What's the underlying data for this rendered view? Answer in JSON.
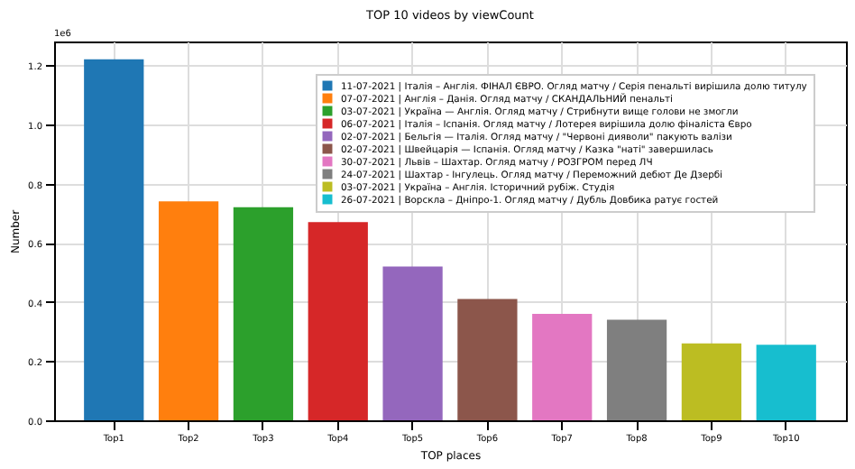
{
  "chart_data": {
    "type": "bar",
    "title": "TOP 10 videos by viewCount",
    "xlabel": "TOP places",
    "ylabel": "Number",
    "categories": [
      "Top1",
      "Top2",
      "Top3",
      "Top4",
      "Top5",
      "Top6",
      "Top7",
      "Top8",
      "Top9",
      "Top10"
    ],
    "series": [
      {
        "name": "11-07-2021 | Італія – Англія. ФІНАЛ ЄВРО. Огляд матчу / Серія пенальті вирішила долю титулу",
        "color": "#1f77b4",
        "values": [
          1.22,
          null,
          null,
          null,
          null,
          null,
          null,
          null,
          null,
          null
        ]
      },
      {
        "name": "07-07-2021 | Англія – Данія. Огляд матчу / СКАНДАЛЬНИЙ пенальті",
        "color": "#ff7f0e",
        "values": [
          null,
          0.74,
          null,
          null,
          null,
          null,
          null,
          null,
          null,
          null
        ]
      },
      {
        "name": "03-07-2021 | Україна — Англія. Огляд матчу / Стрибнути вище голови не змогли",
        "color": "#2ca02c",
        "values": [
          null,
          null,
          0.72,
          null,
          null,
          null,
          null,
          null,
          null,
          null
        ]
      },
      {
        "name": "06-07-2021 | Італія – Іспанія. Огляд матчу / Лотерея вирішила долю фіналіста Євро",
        "color": "#d62728",
        "values": [
          null,
          null,
          null,
          0.67,
          null,
          null,
          null,
          null,
          null,
          null
        ]
      },
      {
        "name": "02-07-2021 | Бельгія — Італія. Огляд матчу / \"Червоні дияволи\" пакують валізи",
        "color": "#9467bd",
        "values": [
          null,
          null,
          null,
          null,
          0.52,
          null,
          null,
          null,
          null,
          null
        ]
      },
      {
        "name": "02-07-2021 | Швейцарія — Іспанія. Огляд матчу / Казка \"наті\" завершилась",
        "color": "#8c564b",
        "values": [
          null,
          null,
          null,
          null,
          null,
          0.41,
          null,
          null,
          null,
          null
        ]
      },
      {
        "name": "30-07-2021 | Львів – Шахтар. Огляд матчу / РОЗГРОМ перед ЛЧ",
        "color": "#e377c2",
        "values": [
          null,
          null,
          null,
          null,
          null,
          null,
          0.36,
          null,
          null,
          null
        ]
      },
      {
        "name": "24-07-2021 | Шахтар - Інгулець. Огляд матчу / Переможний дебют Де Дзербі",
        "color": "#7f7f7f",
        "values": [
          null,
          null,
          null,
          null,
          null,
          null,
          null,
          0.34,
          null,
          null
        ]
      },
      {
        "name": "03-07-2021 | Україна – Англія. Історичний рубіж. Студія",
        "color": "#bcbd22",
        "values": [
          null,
          null,
          null,
          null,
          null,
          null,
          null,
          null,
          0.26,
          null
        ]
      },
      {
        "name": "26-07-2021 | Ворскла – Дніпро-1. Огляд матчу / Дубль Довбика ратує гостей",
        "color": "#17becf",
        "values": [
          null,
          null,
          null,
          null,
          null,
          null,
          null,
          null,
          null,
          0.255
        ]
      }
    ],
    "ylim": [
      0,
      1.28
    ],
    "yticks": [
      {
        "value": 0,
        "label": "0.0"
      },
      {
        "value": 0.2,
        "label": "0.2"
      },
      {
        "value": 0.4,
        "label": "0.4"
      },
      {
        "value": 0.6,
        "label": "0.6"
      },
      {
        "value": 0.8,
        "label": "0.8"
      },
      {
        "value": 1.0,
        "label": "1.0"
      },
      {
        "value": 1.2,
        "label": "1.2"
      }
    ],
    "annotations": [
      "1e6"
    ],
    "grid": true,
    "legend": "top right"
  }
}
